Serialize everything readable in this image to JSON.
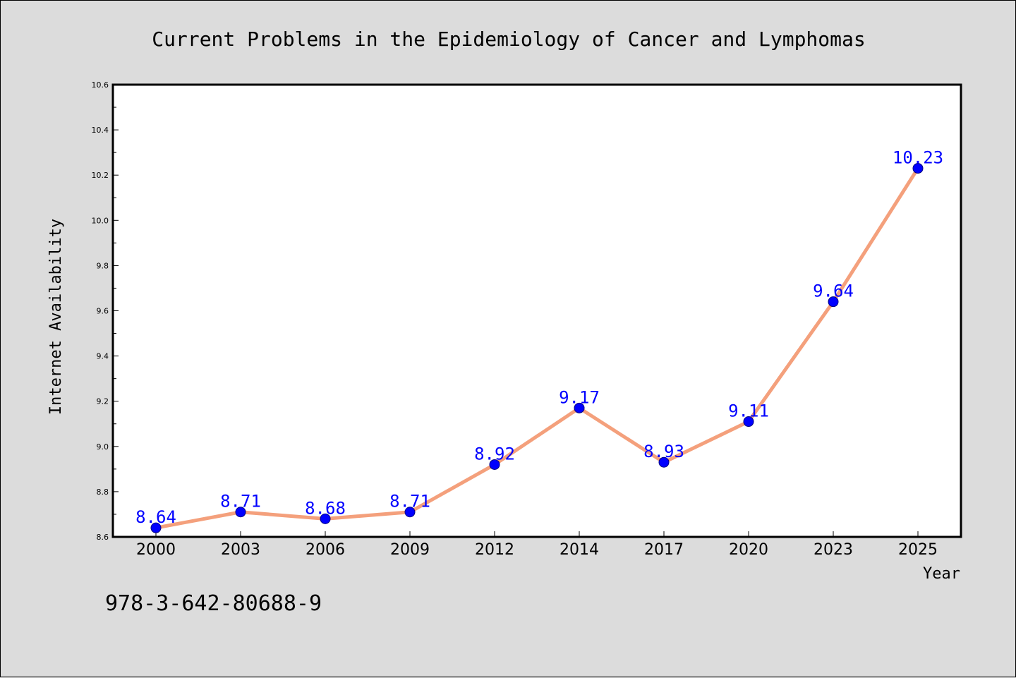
{
  "chart_data": {
    "type": "line",
    "title": "Current Problems in the Epidemiology of Cancer and Lymphomas",
    "xlabel": "Year",
    "ylabel": "Internet Availability",
    "categories": [
      "2000",
      "2003",
      "2006",
      "2009",
      "2012",
      "2014",
      "2017",
      "2020",
      "2023",
      "2025"
    ],
    "series": [
      {
        "values": [
          8.64,
          8.71,
          8.68,
          8.71,
          8.92,
          9.17,
          8.93,
          9.11,
          9.64,
          10.23
        ]
      }
    ],
    "data_labels": [
      "8.64",
      "8.71",
      "8.68",
      "8.71",
      "8.92",
      "9.17",
      "8.93",
      "9.11",
      "9.64",
      "10.23"
    ],
    "ylim": [
      8.6,
      10.6
    ],
    "yticks": [
      "8.6",
      "8.8",
      "9.0",
      "9.2",
      "9.4",
      "9.6",
      "9.8",
      "10.0",
      "10.2",
      "10.4",
      "10.6"
    ],
    "grid": false,
    "legend": "none",
    "colors": {
      "line": "#f4a07c",
      "marker_fill": "#0000ff",
      "marker_edge": "#000080",
      "data_label": "#0000ff",
      "background": "#dcdcdc",
      "plot_background": "#ffffff"
    }
  },
  "footer": {
    "isbn": "978-3-642-80688-9"
  }
}
